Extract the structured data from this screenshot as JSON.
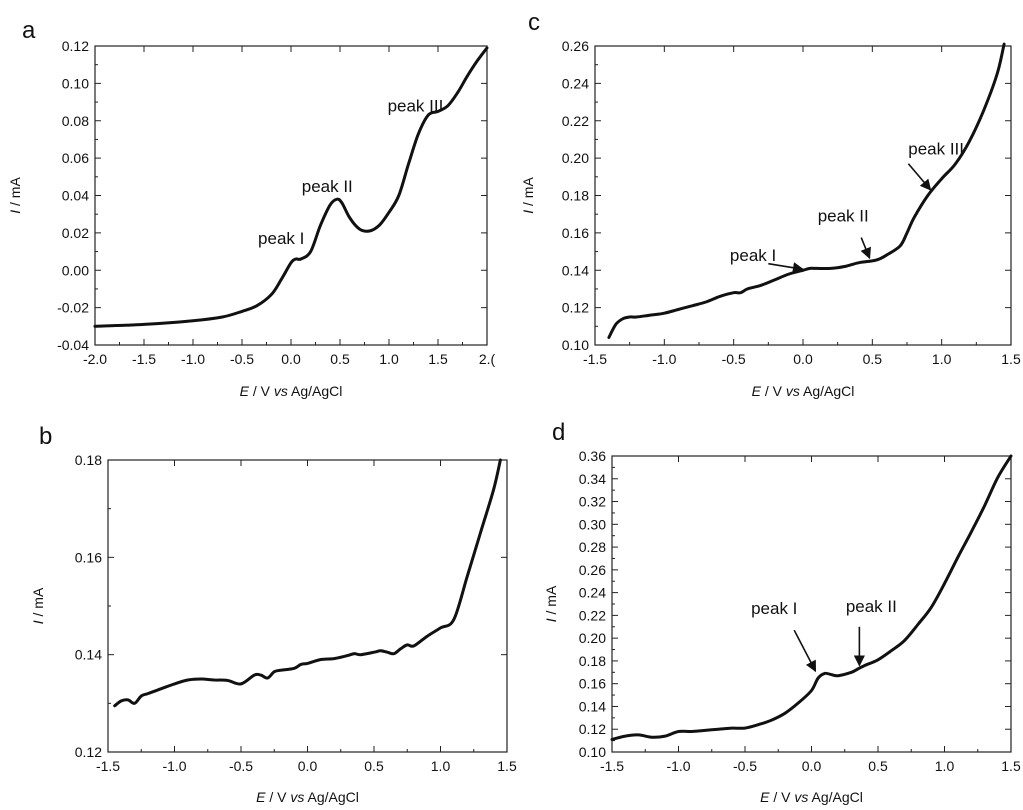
{
  "chart_data": [
    {
      "id": "a",
      "panel_label": "a",
      "type": "line",
      "xlabel": {
        "italic": "E",
        "mid": " / V ",
        "italic2": "vs",
        "rest": " Ag/AgCl"
      },
      "ylabel": {
        "italic": "I",
        "rest": " / mA"
      },
      "xlim": [
        -2.0,
        2.0
      ],
      "ylim": [
        -0.04,
        0.12
      ],
      "xticks": [
        -2.0,
        -1.5,
        -1.0,
        -0.5,
        0.0,
        0.5,
        1.0,
        1.5,
        2.0
      ],
      "xtick_labels": [
        "-2.0",
        "-1.5",
        "-1.0",
        "-0.5",
        "0.0",
        "0.5",
        "1.0",
        "1.5",
        "2.("
      ],
      "yticks": [
        -0.04,
        -0.02,
        0.0,
        0.02,
        0.04,
        0.06,
        0.08,
        0.1,
        0.12
      ],
      "ytick_labels": [
        "-0.04",
        "-0.02",
        "0.00",
        "0.02",
        "0.04",
        "0.06",
        "0.08",
        "0.10",
        "0.12"
      ],
      "series": [
        {
          "x": [
            -2.0,
            -1.5,
            -1.0,
            -0.7,
            -0.5,
            -0.35,
            -0.2,
            -0.1,
            0.0,
            0.05,
            0.1,
            0.2,
            0.3,
            0.4,
            0.47,
            0.52,
            0.6,
            0.7,
            0.8,
            0.9,
            1.0,
            1.1,
            1.2,
            1.3,
            1.4,
            1.5,
            1.6,
            1.7,
            1.8,
            1.9,
            2.0
          ],
          "y": [
            -0.03,
            -0.029,
            -0.027,
            -0.025,
            -0.022,
            -0.019,
            -0.013,
            -0.005,
            0.004,
            0.006,
            0.006,
            0.01,
            0.024,
            0.035,
            0.038,
            0.036,
            0.028,
            0.022,
            0.021,
            0.024,
            0.031,
            0.04,
            0.057,
            0.073,
            0.083,
            0.085,
            0.088,
            0.095,
            0.104,
            0.112,
            0.119
          ]
        }
      ],
      "annotations": [
        {
          "text": "peak I",
          "x": -0.1,
          "y": 0.014,
          "anchor": "middle"
        },
        {
          "text": "peak II",
          "x": 0.37,
          "y": 0.042,
          "anchor": "middle"
        },
        {
          "text": "peak III",
          "x": 1.27,
          "y": 0.085,
          "anchor": "middle"
        }
      ],
      "arrows": []
    },
    {
      "id": "b",
      "panel_label": "b",
      "type": "line",
      "xlabel": {
        "italic": "E",
        "mid": " / V ",
        "italic2": "vs",
        "rest": " Ag/AgCl"
      },
      "ylabel": {
        "italic": "I",
        "rest": " / mA"
      },
      "xlim": [
        -1.5,
        1.5
      ],
      "ylim": [
        0.12,
        0.18
      ],
      "xticks": [
        -1.5,
        -1.0,
        -0.5,
        0.0,
        0.5,
        1.0,
        1.5
      ],
      "xtick_labels": [
        "-1.5",
        "-1.0",
        "-0.5",
        "0.0",
        "0.5",
        "1.0",
        "1.5"
      ],
      "yticks": [
        0.12,
        0.14,
        0.16,
        0.18
      ],
      "ytick_labels": [
        "0.12",
        "0.14",
        "0.16",
        "0.18"
      ],
      "series": [
        {
          "x": [
            -1.45,
            -1.4,
            -1.35,
            -1.3,
            -1.25,
            -1.2,
            -1.1,
            -1.0,
            -0.9,
            -0.8,
            -0.7,
            -0.6,
            -0.5,
            -0.4,
            -0.35,
            -0.3,
            -0.25,
            -0.2,
            -0.1,
            -0.05,
            0.0,
            0.1,
            0.2,
            0.3,
            0.35,
            0.4,
            0.5,
            0.55,
            0.6,
            0.65,
            0.7,
            0.75,
            0.8,
            0.9,
            1.0,
            1.1,
            1.2,
            1.3,
            1.4,
            1.45
          ],
          "y": [
            0.1295,
            0.1305,
            0.1307,
            0.13,
            0.1315,
            0.132,
            0.133,
            0.134,
            0.1348,
            0.135,
            0.1348,
            0.1347,
            0.134,
            0.1358,
            0.1358,
            0.1352,
            0.1365,
            0.1368,
            0.1372,
            0.138,
            0.1382,
            0.139,
            0.1392,
            0.1398,
            0.1402,
            0.14,
            0.1405,
            0.1408,
            0.1405,
            0.1402,
            0.1412,
            0.142,
            0.1418,
            0.1438,
            0.1455,
            0.1472,
            0.156,
            0.165,
            0.174,
            0.18
          ]
        }
      ],
      "annotations": [],
      "arrows": []
    },
    {
      "id": "c",
      "panel_label": "c",
      "type": "line",
      "xlabel": {
        "italic": "E",
        "mid": " / V ",
        "italic2": "vs",
        "rest": " Ag/AgCl"
      },
      "ylabel": {
        "italic": "I",
        "rest": " / mA"
      },
      "xlim": [
        -1.5,
        1.5
      ],
      "ylim": [
        0.1,
        0.26
      ],
      "xticks": [
        -1.5,
        -1.0,
        -0.5,
        0.0,
        0.5,
        1.0,
        1.5
      ],
      "xtick_labels": [
        "-1.5",
        "-1.0",
        "-0.5",
        "0.0",
        "0.5",
        "1.0",
        "1.5"
      ],
      "yticks": [
        0.1,
        0.12,
        0.14,
        0.16,
        0.18,
        0.2,
        0.22,
        0.24,
        0.26
      ],
      "ytick_labels": [
        "0.10",
        "0.12",
        "0.14",
        "0.16",
        "0.18",
        "0.20",
        "0.22",
        "0.24",
        "0.26"
      ],
      "series": [
        {
          "x": [
            -1.4,
            -1.35,
            -1.3,
            -1.25,
            -1.2,
            -1.1,
            -1.0,
            -0.9,
            -0.8,
            -0.7,
            -0.6,
            -0.5,
            -0.45,
            -0.4,
            -0.3,
            -0.2,
            -0.1,
            0.0,
            0.05,
            0.1,
            0.2,
            0.3,
            0.4,
            0.5,
            0.55,
            0.6,
            0.7,
            0.75,
            0.8,
            0.9,
            1.0,
            1.1,
            1.2,
            1.3,
            1.4,
            1.45
          ],
          "y": [
            0.104,
            0.111,
            0.114,
            0.115,
            0.115,
            0.116,
            0.117,
            0.119,
            0.121,
            0.123,
            0.126,
            0.128,
            0.128,
            0.13,
            0.132,
            0.135,
            0.138,
            0.14,
            0.141,
            0.141,
            0.141,
            0.142,
            0.144,
            0.145,
            0.146,
            0.148,
            0.153,
            0.16,
            0.168,
            0.18,
            0.189,
            0.197,
            0.209,
            0.225,
            0.245,
            0.261
          ]
        }
      ],
      "annotations": [
        {
          "text": "peak I",
          "x": -0.36,
          "y": 0.145,
          "anchor": "middle"
        },
        {
          "text": "peak II",
          "x": 0.29,
          "y": 0.166,
          "anchor": "middle"
        },
        {
          "text": "peak III",
          "x": 0.96,
          "y": 0.202,
          "anchor": "middle"
        }
      ],
      "arrows": [
        {
          "from": [
            -0.25,
            0.1435
          ],
          "to": [
            0.0,
            0.1405
          ]
        },
        {
          "from": [
            0.42,
            0.1575
          ],
          "to": [
            0.48,
            0.1465
          ]
        },
        {
          "from": [
            0.76,
            0.197
          ],
          "to": [
            0.92,
            0.183
          ]
        }
      ]
    },
    {
      "id": "d",
      "panel_label": "d",
      "type": "line",
      "xlabel": {
        "italic": "E",
        "mid": " / V ",
        "italic2": "vs",
        "rest": " Ag/AgCl"
      },
      "ylabel": {
        "italic": "I",
        "rest": " / mA"
      },
      "xlim": [
        -1.5,
        1.5
      ],
      "ylim": [
        0.1,
        0.36
      ],
      "xticks": [
        -1.5,
        -1.0,
        -0.5,
        0.0,
        0.5,
        1.0,
        1.5
      ],
      "xtick_labels": [
        "-1.5",
        "-1.0",
        "-0.5",
        "0.0",
        "0.5",
        "1.0",
        "1.5"
      ],
      "yticks": [
        0.1,
        0.12,
        0.14,
        0.16,
        0.18,
        0.2,
        0.22,
        0.24,
        0.26,
        0.28,
        0.3,
        0.32,
        0.34,
        0.36
      ],
      "ytick_labels": [
        "0.10",
        "0.12",
        "0.14",
        "0.16",
        "0.18",
        "0.20",
        "0.22",
        "0.24",
        "0.26",
        "0.28",
        "0.30",
        "0.32",
        "0.34",
        "0.36"
      ],
      "series": [
        {
          "x": [
            -1.5,
            -1.4,
            -1.3,
            -1.2,
            -1.1,
            -1.0,
            -0.9,
            -0.8,
            -0.7,
            -0.6,
            -0.5,
            -0.4,
            -0.3,
            -0.2,
            -0.1,
            0.0,
            0.05,
            0.1,
            0.15,
            0.2,
            0.3,
            0.35,
            0.4,
            0.5,
            0.6,
            0.7,
            0.8,
            0.9,
            1.0,
            1.1,
            1.2,
            1.3,
            1.4,
            1.5
          ],
          "y": [
            0.111,
            0.114,
            0.115,
            0.113,
            0.114,
            0.118,
            0.118,
            0.119,
            0.12,
            0.121,
            0.121,
            0.124,
            0.128,
            0.134,
            0.143,
            0.154,
            0.165,
            0.169,
            0.168,
            0.167,
            0.17,
            0.173,
            0.176,
            0.181,
            0.189,
            0.198,
            0.212,
            0.227,
            0.248,
            0.271,
            0.293,
            0.316,
            0.341,
            0.36
          ]
        }
      ],
      "annotations": [
        {
          "text": "peak I",
          "x": -0.28,
          "y": 0.221,
          "anchor": "middle"
        },
        {
          "text": "peak II",
          "x": 0.45,
          "y": 0.223,
          "anchor": "middle"
        }
      ],
      "arrows": [
        {
          "from": [
            -0.13,
            0.207
          ],
          "to": [
            0.03,
            0.171
          ]
        },
        {
          "from": [
            0.36,
            0.21
          ],
          "to": [
            0.36,
            0.176
          ]
        }
      ]
    }
  ]
}
